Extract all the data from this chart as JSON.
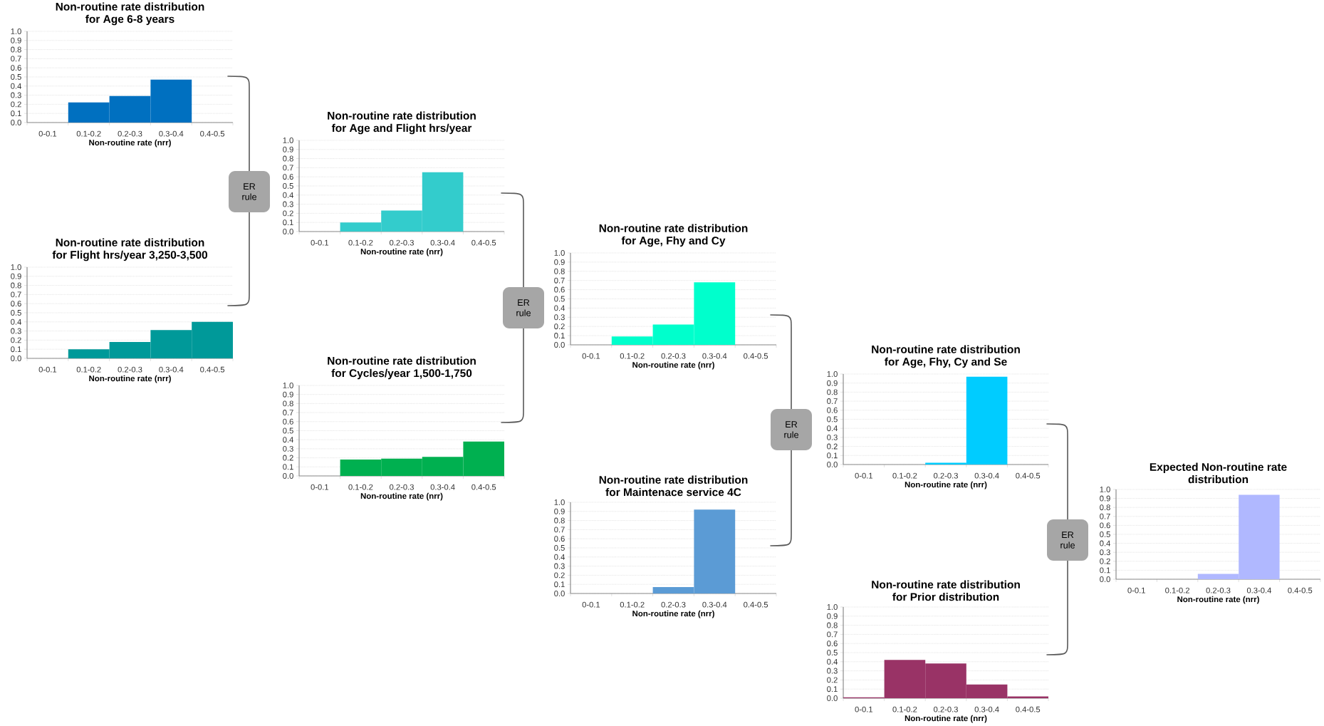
{
  "chart_data": [
    {
      "type": "bar",
      "title": "Non-routine rate distribution",
      "subtitle": "for Age 6-8 years",
      "xlabel": "Non-routine rate (nrr)",
      "categories": [
        "0-0.1",
        "0.1-0.2",
        "0.2-0.3",
        "0.3-0.4",
        "0.4-0.5"
      ],
      "values": [
        0,
        0.22,
        0.29,
        0.47,
        0
      ],
      "color": "#0070c0",
      "ylim": [
        0,
        1
      ],
      "yticks": [
        {
          "value": 0,
          "label": "0.0"
        },
        {
          "value": 0.1,
          "label": "0.1"
        },
        {
          "value": 0.2,
          "label": "0.2"
        },
        {
          "value": 0.3,
          "label": "0.3"
        },
        {
          "value": 0.4,
          "label": "0.4"
        },
        {
          "value": 0.5,
          "label": "0.5"
        },
        {
          "value": 0.6,
          "label": "0.6"
        },
        {
          "value": 0.7,
          "label": "0.7"
        },
        {
          "value": 0.8,
          "label": "0.8"
        },
        {
          "value": 0.9,
          "label": "0.9"
        },
        {
          "value": 1,
          "label": "1.0"
        }
      ],
      "grid": "y"
    },
    {
      "type": "bar",
      "title": "Non-routine rate distribution",
      "subtitle": "for Flight hrs/year 3,250-3,500",
      "xlabel": "Non-routine rate (nrr)",
      "categories": [
        "0-0.1",
        "0.1-0.2",
        "0.2-0.3",
        "0.3-0.4",
        "0.4-0.5"
      ],
      "values": [
        0,
        0.1,
        0.18,
        0.31,
        0.4
      ],
      "color": "#009999",
      "ylim": [
        0,
        1
      ],
      "yticks": [
        {
          "value": 0,
          "label": "0.0"
        },
        {
          "value": 0.1,
          "label": "0.1"
        },
        {
          "value": 0.2,
          "label": "0.2"
        },
        {
          "value": 0.3,
          "label": "0.3"
        },
        {
          "value": 0.4,
          "label": "0.4"
        },
        {
          "value": 0.5,
          "label": "0.5"
        },
        {
          "value": 0.6,
          "label": "0.6"
        },
        {
          "value": 0.7,
          "label": "0.7"
        },
        {
          "value": 0.8,
          "label": "0.8"
        },
        {
          "value": 0.9,
          "label": "0.9"
        },
        {
          "value": 1,
          "label": "1.0"
        }
      ],
      "grid": "y"
    },
    {
      "type": "bar",
      "title": "Non-routine rate distribution",
      "subtitle": "for Age and Flight hrs/year",
      "xlabel": "Non-routine rate (nrr)",
      "categories": [
        "0-0.1",
        "0.1-0.2",
        "0.2-0.3",
        "0.3-0.4",
        "0.4-0.5"
      ],
      "values": [
        0,
        0.1,
        0.23,
        0.65,
        0
      ],
      "color": "#33cccc",
      "ylim": [
        0,
        1
      ],
      "yticks": [
        {
          "value": 0,
          "label": "0.0"
        },
        {
          "value": 0.1,
          "label": "0.1"
        },
        {
          "value": 0.2,
          "label": "0.2"
        },
        {
          "value": 0.3,
          "label": "0.3"
        },
        {
          "value": 0.4,
          "label": "0.4"
        },
        {
          "value": 0.5,
          "label": "0.5"
        },
        {
          "value": 0.6,
          "label": "0.6"
        },
        {
          "value": 0.7,
          "label": "0.7"
        },
        {
          "value": 0.8,
          "label": "0.8"
        },
        {
          "value": 0.9,
          "label": "0.9"
        },
        {
          "value": 1,
          "label": "1.0"
        }
      ],
      "grid": "y"
    },
    {
      "type": "bar",
      "title": "Non-routine rate distribution",
      "subtitle": "for Cycles/year 1,500-1,750",
      "xlabel": "Non-routine rate (nrr)",
      "categories": [
        "0-0.1",
        "0.1-0.2",
        "0.2-0.3",
        "0.3-0.4",
        "0.4-0.5"
      ],
      "values": [
        0,
        0.18,
        0.19,
        0.21,
        0.38
      ],
      "color": "#00b050",
      "ylim": [
        0,
        1
      ],
      "yticks": [
        {
          "value": 0,
          "label": "0.0"
        },
        {
          "value": 0.1,
          "label": "0.1"
        },
        {
          "value": 0.2,
          "label": "0.2"
        },
        {
          "value": 0.3,
          "label": "0.3"
        },
        {
          "value": 0.4,
          "label": "0.4"
        },
        {
          "value": 0.5,
          "label": "0.5"
        },
        {
          "value": 0.6,
          "label": "0.6"
        },
        {
          "value": 0.7,
          "label": "0.7"
        },
        {
          "value": 0.8,
          "label": "0.8"
        },
        {
          "value": 0.9,
          "label": "0.9"
        },
        {
          "value": 1,
          "label": "1.0"
        }
      ],
      "grid": "y"
    },
    {
      "type": "bar",
      "title": "Non-routine rate distribution",
      "subtitle": "for Age, Fhy and Cy",
      "xlabel": "Non-routine rate (nrr)",
      "categories": [
        "0-0.1",
        "0.1-0.2",
        "0.2-0.3",
        "0.3-0.4",
        "0.4-0.5"
      ],
      "values": [
        0,
        0.09,
        0.22,
        0.68,
        0
      ],
      "color": "#00ffcc",
      "ylim": [
        0,
        1
      ],
      "yticks": [
        {
          "value": 0,
          "label": "0.0"
        },
        {
          "value": 0.1,
          "label": "0.1"
        },
        {
          "value": 0.2,
          "label": "0.2"
        },
        {
          "value": 0.3,
          "label": "0.3"
        },
        {
          "value": 0.4,
          "label": "0.4"
        },
        {
          "value": 0.5,
          "label": "0.5"
        },
        {
          "value": 0.6,
          "label": "0.6"
        },
        {
          "value": 0.7,
          "label": "0.7"
        },
        {
          "value": 0.8,
          "label": "0.8"
        },
        {
          "value": 0.9,
          "label": "0.9"
        },
        {
          "value": 1,
          "label": "1.0"
        }
      ],
      "grid": "y"
    },
    {
      "type": "bar",
      "title": "Non-routine rate distribution",
      "subtitle": "for Maintenace service 4C",
      "xlabel": "Non-routine rate (nrr)",
      "categories": [
        "0-0.1",
        "0.1-0.2",
        "0.2-0.3",
        "0.3-0.4",
        "0.4-0.5"
      ],
      "values": [
        0,
        0,
        0.07,
        0.92,
        0
      ],
      "color": "#5b9bd5",
      "ylim": [
        0,
        1
      ],
      "yticks": [
        {
          "value": 0,
          "label": "0.0"
        },
        {
          "value": 0.1,
          "label": "0.1"
        },
        {
          "value": 0.2,
          "label": "0.2"
        },
        {
          "value": 0.3,
          "label": "0.3"
        },
        {
          "value": 0.4,
          "label": "0.4"
        },
        {
          "value": 0.5,
          "label": "0.5"
        },
        {
          "value": 0.6,
          "label": "0.6"
        },
        {
          "value": 0.7,
          "label": "0.7"
        },
        {
          "value": 0.8,
          "label": "0.8"
        },
        {
          "value": 0.9,
          "label": "0.9"
        },
        {
          "value": 1,
          "label": "1.0"
        }
      ],
      "grid": "y"
    },
    {
      "type": "bar",
      "title": "Non-routine rate distribution",
      "subtitle": "for Age, Fhy, Cy and Se",
      "xlabel": "Non-routine rate (nrr)",
      "categories": [
        "0-0.1",
        "0.1-0.2",
        "0.2-0.3",
        "0.3-0.4",
        "0.4-0.5"
      ],
      "values": [
        0,
        0,
        0.02,
        0.97,
        0
      ],
      "color": "#00ccff",
      "ylim": [
        0,
        1
      ],
      "yticks": [
        {
          "value": 0,
          "label": "0.0"
        },
        {
          "value": 0.1,
          "label": "0.1"
        },
        {
          "value": 0.2,
          "label": "0.2"
        },
        {
          "value": 0.3,
          "label": "0.3"
        },
        {
          "value": 0.4,
          "label": "0.4"
        },
        {
          "value": 0.5,
          "label": "0.5"
        },
        {
          "value": 0.6,
          "label": "0.6"
        },
        {
          "value": 0.7,
          "label": "0.7"
        },
        {
          "value": 0.8,
          "label": "0.8"
        },
        {
          "value": 0.9,
          "label": "0.9"
        },
        {
          "value": 1,
          "label": "1.0"
        }
      ],
      "grid": "y"
    },
    {
      "type": "bar",
      "title": "Non-routine rate distribution",
      "subtitle": "for Prior distribution",
      "xlabel": "Non-routine rate (nrr)",
      "categories": [
        "0-0.1",
        "0.1-0.2",
        "0.2-0.3",
        "0.3-0.4",
        "0.4-0.5"
      ],
      "values": [
        0.01,
        0.42,
        0.38,
        0.15,
        0.02
      ],
      "color": "#993366",
      "ylim": [
        0,
        1
      ],
      "yticks": [
        {
          "value": 0,
          "label": "0.0"
        },
        {
          "value": 0.1,
          "label": "0.1"
        },
        {
          "value": 0.2,
          "label": "0.2"
        },
        {
          "value": 0.3,
          "label": "0.3"
        },
        {
          "value": 0.4,
          "label": "0.4"
        },
        {
          "value": 0.5,
          "label": "0.5"
        },
        {
          "value": 0.6,
          "label": "0.6"
        },
        {
          "value": 0.7,
          "label": "0.7"
        },
        {
          "value": 0.8,
          "label": "0.8"
        },
        {
          "value": 0.9,
          "label": "0.9"
        },
        {
          "value": 1,
          "label": "1.0"
        }
      ],
      "grid": "y"
    },
    {
      "type": "bar",
      "title": "Expected Non-routine rate",
      "subtitle": "distribution",
      "xlabel": "Non-routine rate (nrr)",
      "categories": [
        "0-0.1",
        "0.1-0.2",
        "0.2-0.3",
        "0.3-0.4",
        "0.4-0.5"
      ],
      "values": [
        0,
        0,
        0.06,
        0.94,
        0
      ],
      "color": "#b0b8ff",
      "ylim": [
        0,
        1
      ],
      "yticks": [
        {
          "value": 0,
          "label": "0.0"
        },
        {
          "value": 0.1,
          "label": "0.1"
        },
        {
          "value": 0.2,
          "label": "0.2"
        },
        {
          "value": 0.3,
          "label": "0.3"
        },
        {
          "value": 0.4,
          "label": "0.4"
        },
        {
          "value": 0.5,
          "label": "0.5"
        },
        {
          "value": 0.6,
          "label": "0.6"
        },
        {
          "value": 0.7,
          "label": "0.7"
        },
        {
          "value": 0.8,
          "label": "0.8"
        },
        {
          "value": 0.9,
          "label": "0.9"
        },
        {
          "value": 1,
          "label": "1.0"
        }
      ],
      "grid": "y"
    },
    {
      "type": "other",
      "annotations": [
        "ER rule",
        "ER rule",
        "ER rule",
        "ER rule"
      ]
    }
  ]
}
